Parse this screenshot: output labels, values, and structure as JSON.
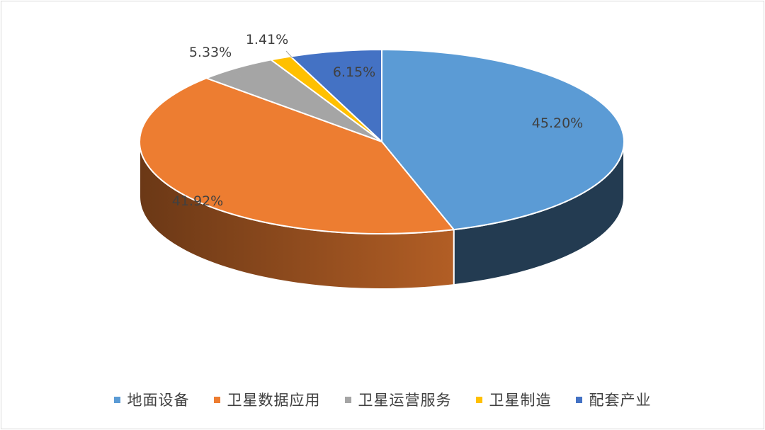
{
  "chart_data": {
    "type": "pie",
    "variant": "3d",
    "title": "",
    "categories": [
      "地面设备",
      "卫星数据应用",
      "卫星运营服务",
      "卫星制造",
      "配套产业"
    ],
    "values": [
      45.2,
      41.92,
      5.33,
      1.41,
      6.15
    ],
    "data_labels": [
      "45.20%",
      "41.92%",
      "5.33%",
      "1.41%",
      "6.15%"
    ],
    "colors": [
      "#5b9bd5",
      "#ed7d31",
      "#a5a5a5",
      "#ffc000",
      "#4472c4"
    ],
    "legend_position": "bottom",
    "unit": "%"
  }
}
